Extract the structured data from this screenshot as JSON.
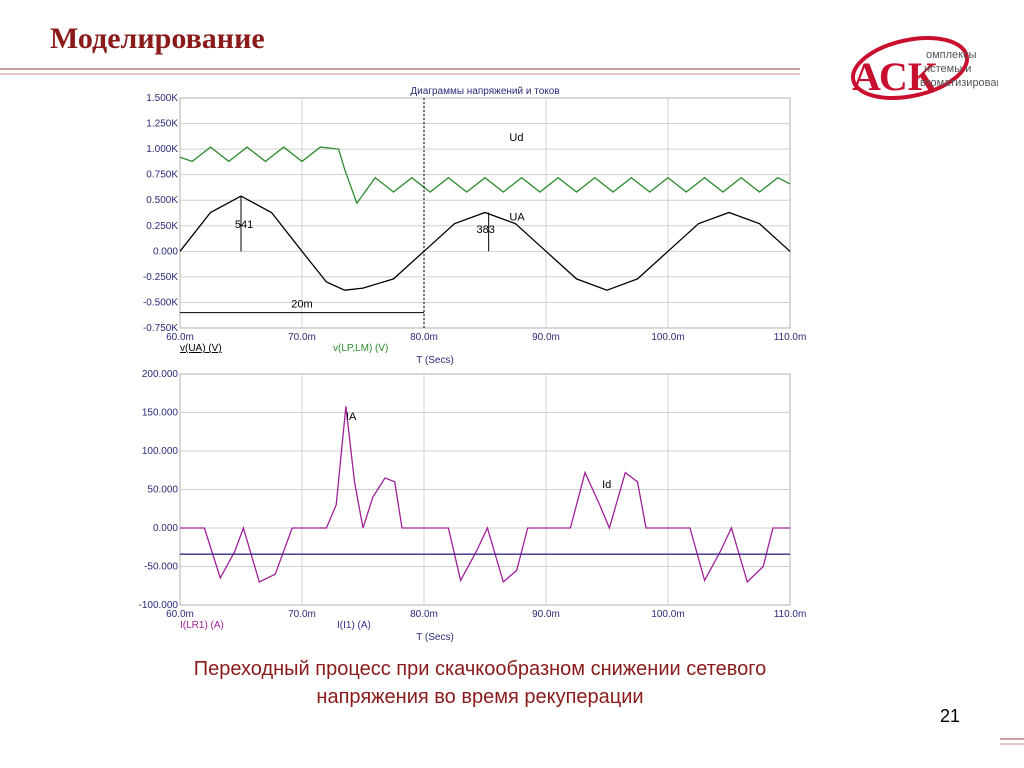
{
  "slide": {
    "title": "Моделирование",
    "caption_line1": "Переходный процесс при скачкообразном снижении сетевого",
    "caption_line2": "напряжения во время рекуперации",
    "page_number": "21"
  },
  "logo": {
    "letters": "АСК",
    "line1": "омплексы",
    "line2": "истемы и",
    "line3": "втоматизированные",
    "color": "#c8102e"
  },
  "chart_data": [
    {
      "type": "line",
      "title": "Диаграммы напряжений и токов",
      "xlabel": "T (Secs)",
      "ylabel": "",
      "xlim": [
        60,
        110
      ],
      "ylim": [
        -0.75,
        1.5
      ],
      "x_tick_labels": [
        "60.0m",
        "70.0m",
        "80.0m",
        "90.0m",
        "100.0m",
        "110.0m"
      ],
      "y_tick_labels": [
        "1.500K",
        "1.250K",
        "1.000K",
        "0.750K",
        "0.500K",
        "0.250K",
        "0.000",
        "-0.250K",
        "-0.500K",
        "-0.750K"
      ],
      "grid": true,
      "legend": [
        "v(UA) (V)",
        "v(LP,LM) (V)"
      ],
      "series": [
        {
          "name": "v(UA) (V)",
          "label": "UA",
          "color": "#000000",
          "x": [
            60,
            62.5,
            65,
            67.5,
            70,
            72,
            73.5,
            75,
            77.5,
            80,
            82.5,
            85,
            87.5,
            90,
            92.5,
            95,
            97.5,
            100,
            102.5,
            105,
            107.5,
            110
          ],
          "values": [
            0,
            0.38,
            0.54,
            0.38,
            0,
            -0.3,
            -0.38,
            -0.36,
            -0.27,
            0,
            0.27,
            0.38,
            0.27,
            0,
            -0.27,
            -0.38,
            -0.27,
            0,
            0.27,
            0.38,
            0.27,
            0
          ]
        },
        {
          "name": "v(LP,LM) (V)",
          "label": "Ud",
          "color": "#2e8b2e",
          "x": [
            60,
            61,
            62.5,
            64,
            65.5,
            67,
            68.5,
            70,
            71.5,
            73,
            73.5,
            74.5,
            76,
            77.5,
            79,
            80.5,
            82,
            83.5,
            85,
            86.5,
            88,
            89.5,
            91,
            92.5,
            94,
            95.5,
            97,
            98.5,
            100,
            101.5,
            103,
            104.5,
            106,
            107.5,
            109,
            110
          ],
          "values": [
            0.92,
            0.88,
            1.02,
            0.88,
            1.02,
            0.88,
            1.02,
            0.88,
            1.02,
            1.0,
            0.8,
            0.47,
            0.72,
            0.58,
            0.72,
            0.58,
            0.72,
            0.58,
            0.72,
            0.58,
            0.72,
            0.58,
            0.72,
            0.58,
            0.72,
            0.58,
            0.72,
            0.58,
            0.72,
            0.58,
            0.72,
            0.58,
            0.72,
            0.58,
            0.72,
            0.66
          ]
        }
      ],
      "annotations": [
        "541",
        "383",
        "20m"
      ]
    },
    {
      "type": "line",
      "title": "",
      "xlabel": "T (Secs)",
      "ylabel": "",
      "xlim": [
        60,
        110
      ],
      "ylim": [
        -100,
        200
      ],
      "x_tick_labels": [
        "60.0m",
        "70.0m",
        "80.0m",
        "90.0m",
        "100.0m",
        "110.0m"
      ],
      "y_tick_labels": [
        "200.000",
        "150.000",
        "100.000",
        "50.000",
        "0.000",
        "-50.000",
        "-100.000"
      ],
      "grid": true,
      "legend": [
        "I(LR1) (A)",
        "I(I1) (A)"
      ],
      "series": [
        {
          "name": "I(LR1) (A)",
          "label": "IA",
          "color": "#a0209a",
          "x": [
            60,
            62,
            63.3,
            64.5,
            65.2,
            66.5,
            67.8,
            69.2,
            72,
            72.8,
            73.6,
            74.3,
            75,
            75.8,
            76.8,
            77.6,
            78.2,
            80,
            82,
            83,
            84.3,
            85.2,
            86.5,
            87.6,
            88.5,
            90,
            92,
            93.2,
            94.4,
            95.2,
            96.5,
            97.5,
            98.2,
            100,
            101.8,
            103,
            104.3,
            105.2,
            106.5,
            107.8,
            108.6,
            110
          ],
          "values": [
            0,
            0,
            -65,
            -30,
            0,
            -70,
            -60,
            0,
            0,
            30,
            158,
            60,
            0,
            40,
            65,
            60,
            0,
            0,
            0,
            -68,
            -30,
            0,
            -70,
            -55,
            0,
            0,
            0,
            72,
            30,
            0,
            72,
            60,
            0,
            0,
            0,
            -68,
            -30,
            0,
            -70,
            -50,
            0,
            0
          ]
        },
        {
          "name": "I(I1) (A)",
          "label": "Id",
          "color": "#3a2a8c",
          "x": [
            60,
            110
          ],
          "values": [
            -34,
            -34
          ]
        }
      ]
    }
  ]
}
